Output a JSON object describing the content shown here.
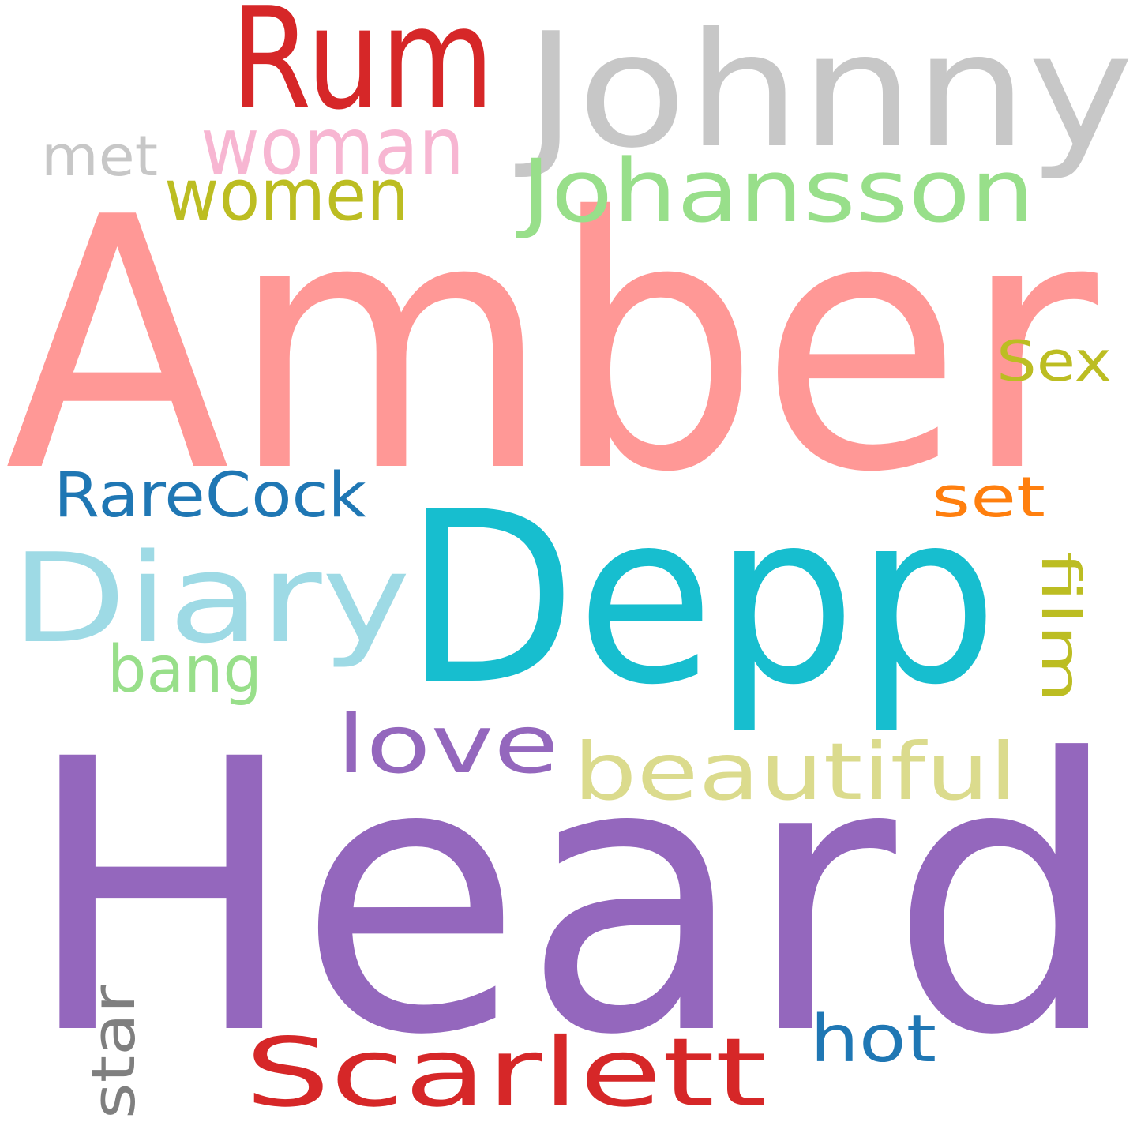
{
  "word_cloud": {
    "words": [
      {
        "text": "Amber",
        "color": "#ff9896"
      },
      {
        "text": "Heard",
        "color": "#9467bd"
      },
      {
        "text": "Depp",
        "color": "#17becf"
      },
      {
        "text": "Johnny",
        "color": "#c7c7c7"
      },
      {
        "text": "Rum",
        "color": "#d62728"
      },
      {
        "text": "Diary",
        "color": "#9edae5"
      },
      {
        "text": "Scarlett",
        "color": "#d62728"
      },
      {
        "text": "Johansson",
        "color": "#98df8a"
      },
      {
        "text": "woman",
        "color": "#f7b6d2"
      },
      {
        "text": "women",
        "color": "#bcbd22"
      },
      {
        "text": "beautiful",
        "color": "#dbdb8d"
      },
      {
        "text": "love",
        "color": "#9467bd"
      },
      {
        "text": "RareCock",
        "color": "#1f77b4"
      },
      {
        "text": "bang",
        "color": "#98df8a"
      },
      {
        "text": "hot",
        "color": "#1f77b4"
      },
      {
        "text": "Sex",
        "color": "#bcbd22"
      },
      {
        "text": "set",
        "color": "#ff7f0e"
      },
      {
        "text": "met",
        "color": "#c7c7c7"
      },
      {
        "text": "film",
        "color": "#bcbd22"
      },
      {
        "text": "star",
        "color": "#7f7f7f"
      }
    ]
  }
}
